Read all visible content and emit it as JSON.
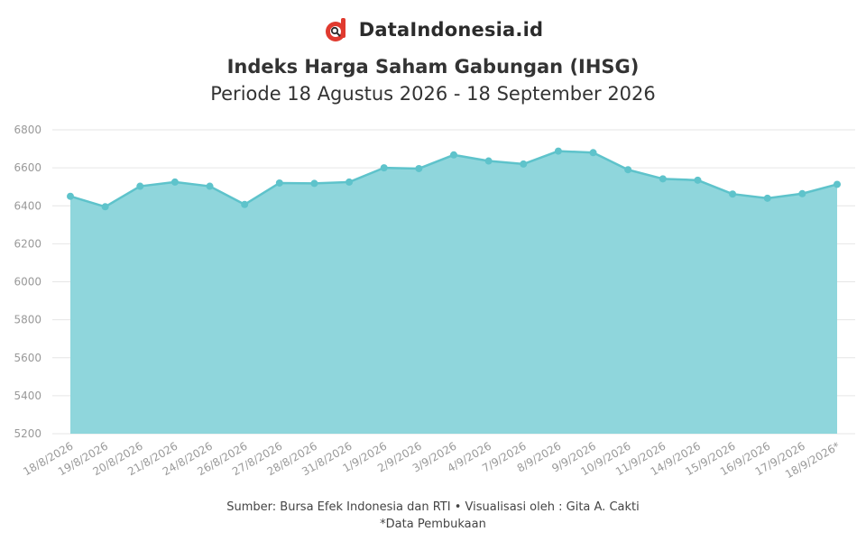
{
  "brand": {
    "name": "DataIndonesia.id",
    "logo_icon": "dataindonesia-logo-icon"
  },
  "footer": {
    "source": "Sumber: Bursa Efek Indonesia dan RTI • Visualisasi oleh : Gita A. Cakti",
    "note": "*Data Pembukaan"
  },
  "chart_data": {
    "type": "area",
    "title": "Indeks Harga Saham Gabungan (IHSG)",
    "subtitle": "Periode 18 Agustus 2026 - 18 September 2026",
    "xlabel": "",
    "ylabel": "",
    "categories": [
      "18/8/2026",
      "19/8/2026",
      "20/8/2026",
      "21/8/2026",
      "24/8/2026",
      "26/8/2026",
      "27/8/2026",
      "28/8/2026",
      "31/8/2026",
      "1/9/2026",
      "2/9/2026",
      "3/9/2026",
      "4/9/2026",
      "7/9/2026",
      "8/9/2026",
      "9/9/2026",
      "10/9/2026",
      "11/9/2026",
      "14/9/2026",
      "15/9/2026",
      "16/9/2026",
      "17/9/2026",
      "18/9/2026*"
    ],
    "values": [
      6450,
      6395,
      6503,
      6525,
      6503,
      6407,
      6520,
      6518,
      6525,
      6600,
      6596,
      6668,
      6636,
      6620,
      6688,
      6680,
      6590,
      6542,
      6535,
      6462,
      6440,
      6464,
      6513
    ],
    "ylim": [
      5200,
      6800
    ],
    "yticks": [
      5200,
      5400,
      5600,
      5800,
      6000,
      6200,
      6400,
      6600,
      6800
    ],
    "grid": true,
    "legend": "none",
    "colors": {
      "fill": "#8fd6dc",
      "line": "#5ec3cb",
      "marker": "#5ec3cb",
      "grid": "#e6e6e6",
      "tick_label": "#999999"
    }
  }
}
